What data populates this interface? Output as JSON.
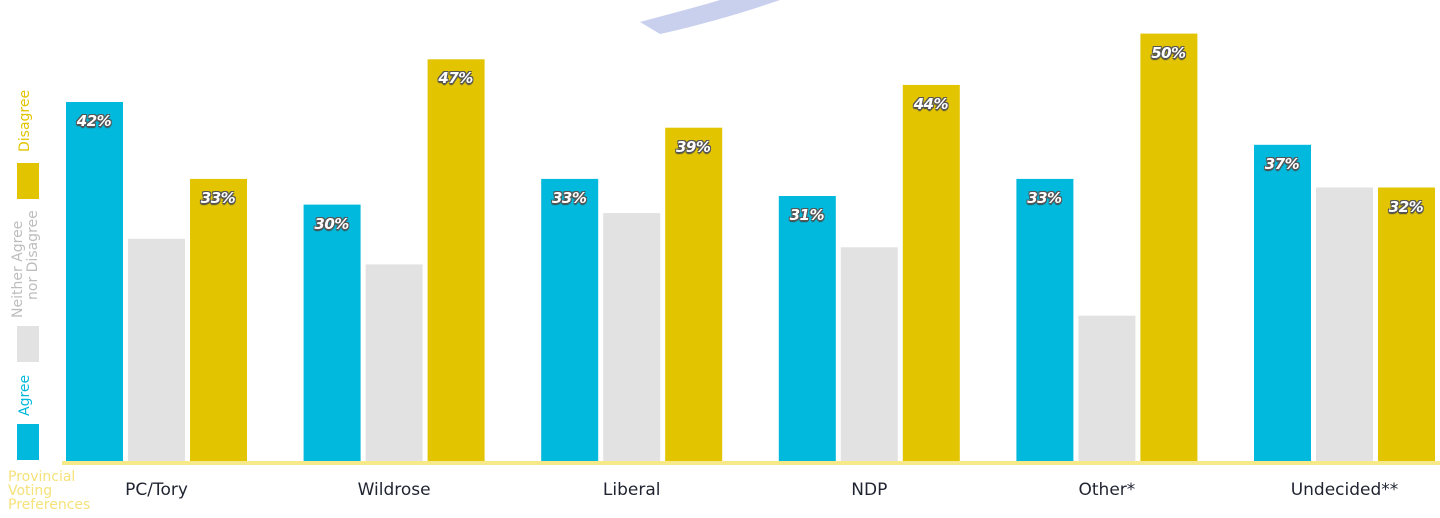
{
  "colors": {
    "agree": "#00b9dc",
    "neutral": "#e2e2e2",
    "disagree": "#e2c400",
    "baseline": "#f7e88a",
    "decor": "#c8d0ee"
  },
  "legend": {
    "agree": "Agree",
    "neutral_line1": "Neither Agree",
    "neutral_line2": "nor Disagree",
    "disagree": "Disagree"
  },
  "xaxis_title": "Provincial\nVoting\nPreferences",
  "chart_data": {
    "type": "bar",
    "categories": [
      "PC/Tory",
      "Wildrose",
      "Liberal",
      "NDP",
      "Other*",
      "Undecided**"
    ],
    "series": [
      {
        "name": "Agree",
        "values": [
          42,
          30,
          33,
          31,
          33,
          37
        ],
        "labels": [
          "42%",
          "30%",
          "33%",
          "31%",
          "33%",
          "37%"
        ]
      },
      {
        "name": "Neither Agree nor Disagree",
        "values": [
          26,
          23,
          29,
          25,
          17,
          32
        ]
      },
      {
        "name": "Disagree",
        "values": [
          33,
          47,
          39,
          44,
          50,
          32
        ],
        "labels": [
          "33%",
          "47%",
          "39%",
          "44%",
          "50%",
          "32%"
        ]
      }
    ],
    "ylim": [
      0,
      53
    ],
    "grid": false,
    "legend_position": "left"
  }
}
